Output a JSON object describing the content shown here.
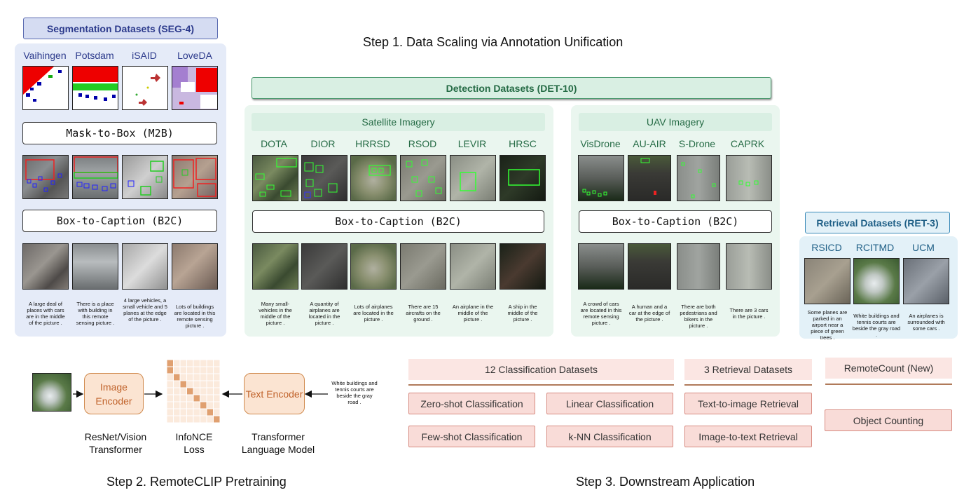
{
  "seg": {
    "title": "Segmentation Datasets (SEG-4)",
    "datasets": [
      "Vaihingen",
      "Potsdam",
      "iSAID",
      "LoveDA"
    ],
    "m2b": "Mask-to-Box (M2B)",
    "b2c": "Box-to-Caption (B2C)",
    "captions": [
      "A large deal of places with cars are in the middle of the picture .",
      "There is a place with building in this remote sensing picture .",
      "4 large vehicles, a small vehicle and 5 planes at the edge of the picture .",
      "Lots of buildings are located in this remote sensing picture ."
    ]
  },
  "step1": "Step 1. Data Scaling via Annotation Unification",
  "det": {
    "title": "Detection Datasets (DET-10)",
    "satellite": {
      "title": "Satellite Imagery",
      "datasets": [
        "DOTA",
        "DIOR",
        "HRRSD",
        "RSOD",
        "LEVIR",
        "HRSC"
      ],
      "b2c": "Box-to-Caption (B2C)",
      "captions": [
        "Many small-vehicles in the middle of the picture .",
        "A quantity of airplanes are located in the picture .",
        "Lots of airplanes are located in the picture .",
        "There are 15 aircrafts on the ground .",
        "An airplane in the middle of the picture .",
        "A ship in the middle of the picture ."
      ]
    },
    "uav": {
      "title": "UAV Imagery",
      "datasets": [
        "VisDrone",
        "AU-AIR",
        "S-Drone",
        "CAPRK"
      ],
      "b2c": "Box-to-Caption (B2C)",
      "captions": [
        "A crowd of cars are located in this remote sensing picture .",
        "A human and a car at the edge of the picture .",
        "There are both pedestrians and bikers in the picture .",
        "There are 3 cars in the picture ."
      ]
    }
  },
  "ret": {
    "title": "Retrieval Datasets (RET-3)",
    "datasets": [
      "RSICD",
      "RCITMD",
      "UCM"
    ],
    "captions": [
      "Some planes are parked in an airport near a piece of green trees .",
      "White buildings and tennis courts are beside the gray road .",
      "An airplanes is surrounded with some cars ."
    ]
  },
  "step2": {
    "title": "Step 2. RemoteCLIP Pretraining",
    "image_encoder": "Image Encoder",
    "text_encoder": "Text Encoder",
    "image_encoder_sub": "ResNet/Vision Transformer",
    "loss_sub": "InfoNCE Loss",
    "text_encoder_sub": "Transformer Language Model",
    "text_input": "White buildings and tennis courts are beside the gray road ."
  },
  "step3": {
    "title": "Step 3. Downstream Application",
    "classification_header": "12 Classification Datasets",
    "retrieval_header": "3 Retrieval Datasets",
    "count_header": "RemoteCount (New)",
    "zero_shot": "Zero-shot Classification",
    "linear": "Linear Classification",
    "few_shot": "Few-shot Classification",
    "knn": "k-NN Classification",
    "t2i": "Text-to-image Retrieval",
    "i2t": "Image-to-text Retrieval",
    "counting": "Object Counting"
  },
  "colors": {
    "seg_panel": "#e5ebf8",
    "seg_title_bg": "#d5dcf2",
    "seg_title_fg": "#2c3a8c",
    "det_panel": "#eaf6ef",
    "det_title_bg": "#d9efe3",
    "det_title_fg": "#256b45",
    "ret_panel": "#e3f1f8",
    "ret_title_fg": "#1f5f86",
    "encoder_fill": "#fbe4d2",
    "encoder_border": "#d08a4e",
    "matrix_diag": "#e0a070",
    "downstream_fill": "#f9dcd8",
    "downstream_border": "#d78a80"
  }
}
